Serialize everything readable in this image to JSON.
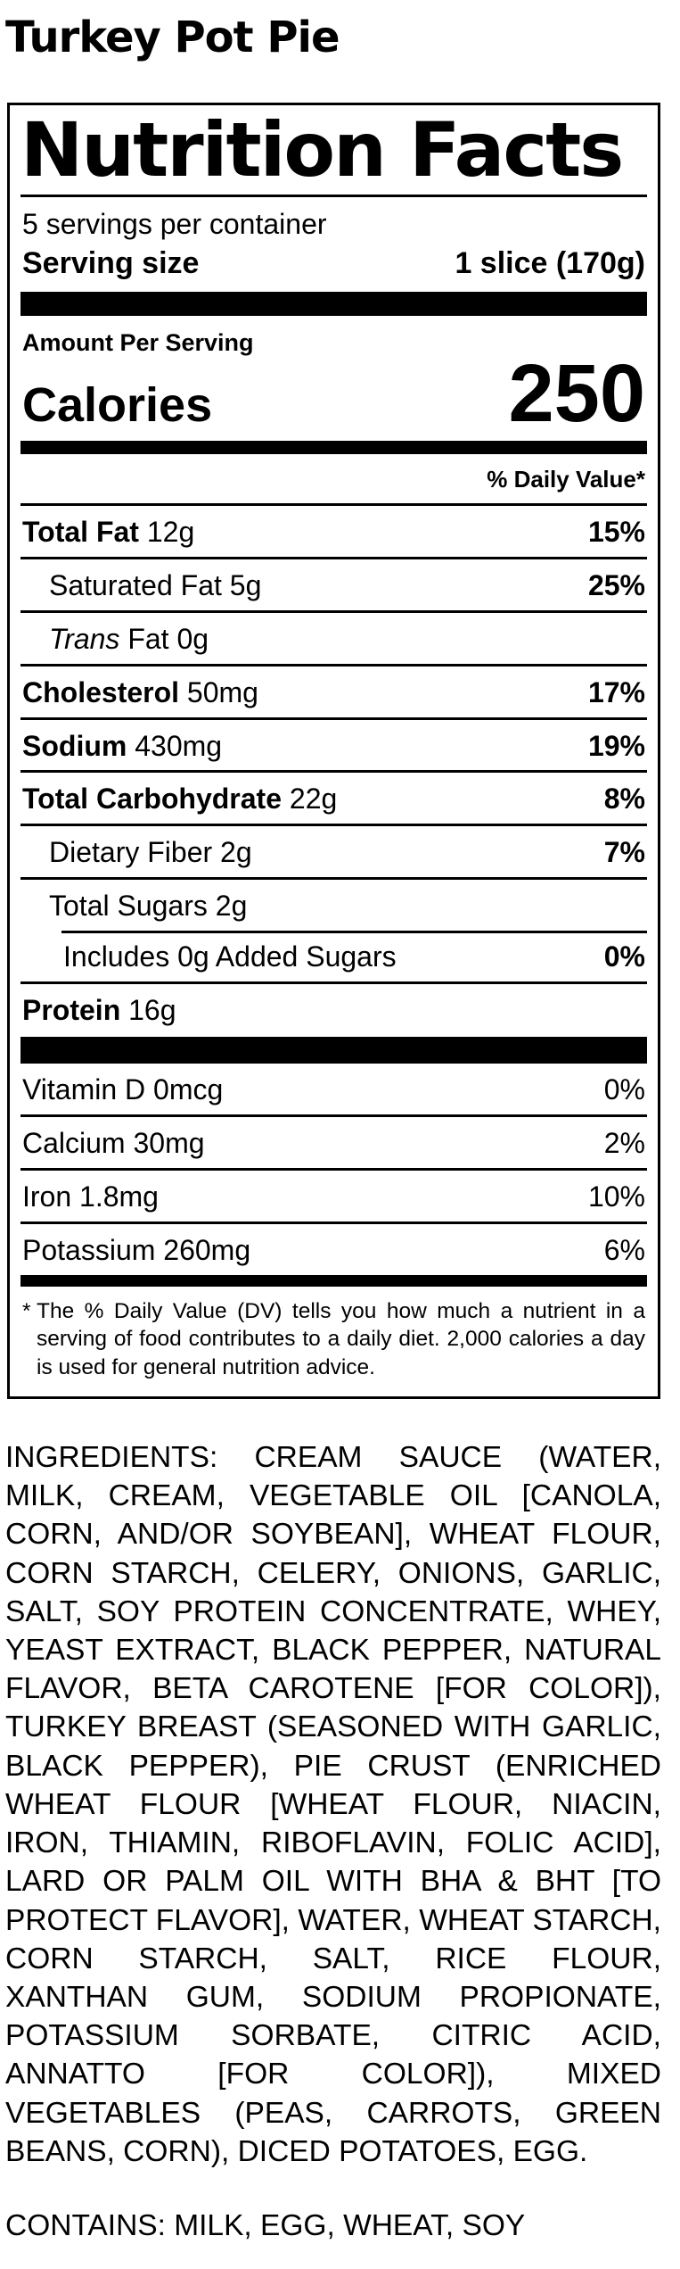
{
  "page": {
    "product_title": "Turkey Pot Pie"
  },
  "nutrition_label": {
    "title": "Nutrition Facts",
    "servings_per_container": "5 servings per container",
    "serving_size": {
      "label": "Serving size",
      "value": "1 slice (170g)"
    },
    "amount_per_serving_label": "Amount Per Serving",
    "calories": {
      "label": "Calories",
      "value": "250"
    },
    "daily_value_header": "% Daily Value*",
    "nutrient_rows": [
      {
        "name": "Total Fat",
        "amount": "12g",
        "daily_value": "15%",
        "style": "primary",
        "indent": 0
      },
      {
        "name": "Saturated Fat",
        "amount": "5g",
        "daily_value": "25%",
        "style": "secondary",
        "indent": 1
      },
      {
        "name": "Trans Fat",
        "amount": "0g",
        "daily_value": "",
        "style": "secondary-italic",
        "indent": 1
      },
      {
        "name": "Cholesterol",
        "amount": "50mg",
        "daily_value": "17%",
        "style": "primary",
        "indent": 0
      },
      {
        "name": "Sodium",
        "amount": "430mg",
        "daily_value": "19%",
        "style": "primary",
        "indent": 0
      },
      {
        "name": "Total Carbohydrate",
        "amount": "22g",
        "daily_value": "8%",
        "style": "primary",
        "indent": 0
      },
      {
        "name": "Dietary Fiber",
        "amount": "2g",
        "daily_value": "7%",
        "style": "secondary",
        "indent": 1
      },
      {
        "name": "Total Sugars",
        "amount": "2g",
        "daily_value": "",
        "style": "secondary",
        "indent": 1
      },
      {
        "name": "Includes 0g Added Sugars",
        "amount": "",
        "daily_value": "0%",
        "style": "secondary",
        "indent": 2,
        "rule_indented": true
      },
      {
        "name": "Protein",
        "amount": "16g",
        "daily_value": "",
        "style": "primary",
        "indent": 0
      }
    ],
    "micronutrient_rows": [
      {
        "name": "Vitamin D",
        "amount": "0mcg",
        "daily_value": "0%"
      },
      {
        "name": "Calcium",
        "amount": "30mg",
        "daily_value": "2%"
      },
      {
        "name": "Iron",
        "amount": "1.8mg",
        "daily_value": "10%"
      },
      {
        "name": "Potassium",
        "amount": "260mg",
        "daily_value": "6%"
      }
    ],
    "footnote_marker": "*",
    "footnote": "The % Daily Value (DV) tells you how much a nutrient in a serving of food contributes to a daily diet. 2,000 calories a day is used for general nutrition advice."
  },
  "ingredients_text": "INGREDIENTS: CREAM SAUCE (WATER, MILK, CREAM, VEGETABLE OIL [CANOLA, CORN, AND/OR SOYBEAN], WHEAT FLOUR, CORN STARCH, CELERY, ONIONS, GARLIC, SALT, SOY PROTEIN CONCENTRATE, WHEY, YEAST EXTRACT, BLACK PEPPER, NATURAL FLAVOR, BETA CAROTENE [FOR COLOR]), TURKEY BREAST (SEASONED WITH GARLIC, BLACK PEPPER), PIE CRUST (ENRICHED WHEAT FLOUR [WHEAT FLOUR, NIACIN, IRON, THIAMIN, RIBOFLAVIN, FOLIC ACID], LARD OR PALM OIL WITH BHA & BHT [TO PROTECT FLAVOR], WATER, WHEAT STARCH, CORN STARCH, SALT, RICE FLOUR, XANTHAN GUM, SODIUM PROPIONATE, POTASSIUM SORBATE, CITRIC ACID, ANNATTO [FOR COLOR]), MIXED VEGETABLES (PEAS, CARROTS, GREEN BEANS, CORN), DICED POTATOES, EGG.",
  "contains_text": "CONTAINS: MILK, EGG, WHEAT, SOY",
  "colors": {
    "text": "#000000",
    "background": "#ffffff"
  }
}
